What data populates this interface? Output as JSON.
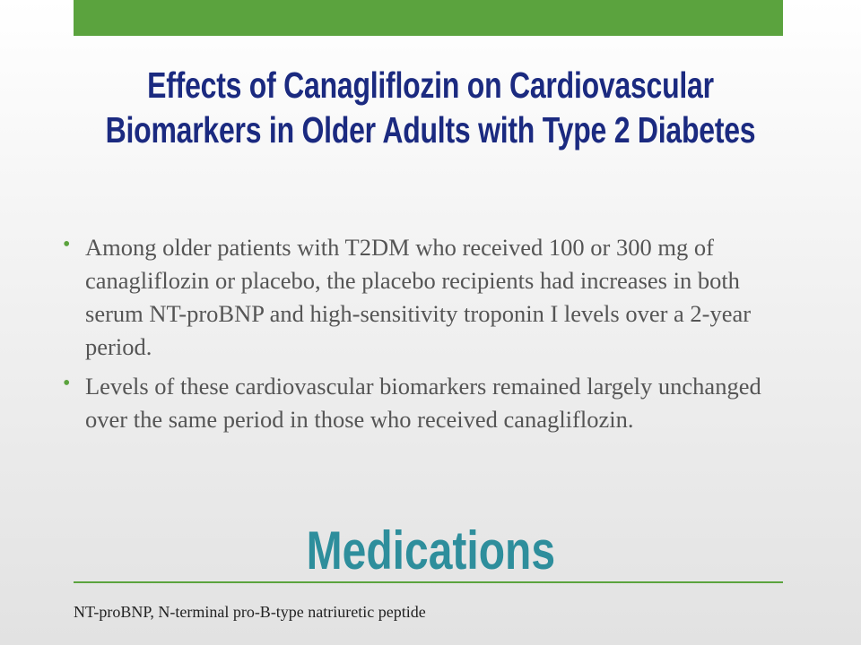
{
  "slide": {
    "title_lines": [
      "Effects of Canagliflozin on Cardiovascular",
      "Biomarkers in Older Adults with Type 2 Diabetes"
    ],
    "bullets": [
      "Among older patients with T2DM who received 100 or 300 mg of canagliflozin or placebo, the placebo recipients had increases in both serum NT-proBNP and high-sensitivity troponin I levels over a 2-year period.",
      "Levels of these cardiovascular biomarkers remained largely unchanged over the same period in those who received canagliflozin."
    ],
    "section_heading": "Medications",
    "footnote": "NT-proBNP, N-terminal pro-B-type natriuretic peptide"
  }
}
